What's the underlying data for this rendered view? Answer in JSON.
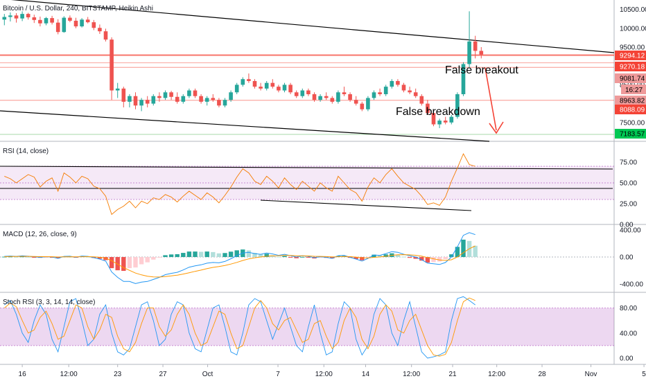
{
  "header": {
    "title": "Bitcoin / U.S. Dollar, 240, BITSTAMP, Heikin Ashi"
  },
  "colors": {
    "up": "#26a69a",
    "down": "#ef5350",
    "trendline": "#000000",
    "level": "#f44336",
    "support": "#4caf50",
    "rsi_line": "#f57c00",
    "rsi_band": "#9c27b0",
    "macd_line": "#2196f3",
    "signal_line": "#ff9800",
    "stoch_k": "#2196f3",
    "stoch_d": "#ff9800",
    "arrow": "#f44336"
  },
  "chart_data": [
    {
      "type": "candlestick",
      "panel": "price",
      "x_range": [
        0,
        100
      ],
      "ylim": [
        7000,
        10750
      ],
      "y_ticks": [
        7500,
        8000,
        8500,
        9000,
        9500,
        10000,
        10500
      ],
      "y_tick_labels": [
        "7500.00",
        "8000.00",
        "8500.00",
        "9000.00",
        "9500.00",
        "10000.00",
        "10500.00"
      ],
      "ohlc": [
        [
          10230,
          10380,
          10080,
          10300
        ],
        [
          10300,
          10420,
          10180,
          10340
        ],
        [
          10340,
          10400,
          10150,
          10260
        ],
        [
          10260,
          10450,
          10190,
          10380
        ],
        [
          10380,
          10410,
          10230,
          10290
        ],
        [
          10290,
          10360,
          10140,
          10220
        ],
        [
          10220,
          10310,
          10050,
          10130
        ],
        [
          10130,
          10300,
          10080,
          10270
        ],
        [
          10270,
          10330,
          10100,
          10150
        ],
        [
          10150,
          10240,
          9840,
          9900
        ],
        [
          9900,
          10320,
          9880,
          10280
        ],
        [
          10280,
          10340,
          10160,
          10200
        ],
        [
          10200,
          10280,
          10000,
          10050
        ],
        [
          10050,
          10270,
          10020,
          10230
        ],
        [
          10230,
          10300,
          10130,
          10160
        ],
        [
          10160,
          10220,
          9950,
          10010
        ],
        [
          10010,
          10100,
          9850,
          9920
        ],
        [
          9920,
          9990,
          9650,
          9700
        ],
        [
          9700,
          9760,
          8100,
          8350
        ],
        [
          8350,
          8550,
          8150,
          8400
        ],
        [
          8400,
          8450,
          7900,
          8050
        ],
        [
          8050,
          8250,
          7900,
          8200
        ],
        [
          8200,
          8300,
          7850,
          7950
        ],
        [
          7950,
          8150,
          7800,
          8100
        ],
        [
          8100,
          8200,
          7900,
          8000
        ],
        [
          8000,
          8250,
          7950,
          8200
        ],
        [
          8200,
          8300,
          8050,
          8150
        ],
        [
          8150,
          8350,
          8100,
          8300
        ],
        [
          8300,
          8340,
          8100,
          8180
        ],
        [
          8180,
          8300,
          8000,
          8050
        ],
        [
          8050,
          8250,
          8000,
          8200
        ],
        [
          8200,
          8400,
          8150,
          8350
        ],
        [
          8350,
          8400,
          8150,
          8200
        ],
        [
          8200,
          8250,
          8000,
          8050
        ],
        [
          8050,
          8200,
          7950,
          8150
        ],
        [
          8150,
          8250,
          8050,
          8100
        ],
        [
          8100,
          8150,
          7900,
          7950
        ],
        [
          7950,
          8150,
          7900,
          8100
        ],
        [
          8100,
          8350,
          8050,
          8300
        ],
        [
          8300,
          8550,
          8250,
          8500
        ],
        [
          8500,
          8700,
          8450,
          8650
        ],
        [
          8650,
          8800,
          8550,
          8600
        ],
        [
          8600,
          8650,
          8400,
          8450
        ],
        [
          8450,
          8550,
          8350,
          8400
        ],
        [
          8400,
          8600,
          8350,
          8550
        ],
        [
          8550,
          8650,
          8400,
          8450
        ],
        [
          8450,
          8500,
          8300,
          8350
        ],
        [
          8350,
          8550,
          8300,
          8500
        ],
        [
          8500,
          8550,
          8250,
          8300
        ],
        [
          8300,
          8350,
          8150,
          8200
        ],
        [
          8200,
          8400,
          8150,
          8350
        ],
        [
          8350,
          8400,
          8200,
          8250
        ],
        [
          8250,
          8300,
          8050,
          8100
        ],
        [
          8100,
          8250,
          8050,
          8200
        ],
        [
          8200,
          8300,
          8100,
          8150
        ],
        [
          8150,
          8200,
          8000,
          8050
        ],
        [
          8050,
          8350,
          8000,
          8300
        ],
        [
          8300,
          8450,
          8200,
          8250
        ],
        [
          8250,
          8300,
          8050,
          8100
        ],
        [
          8100,
          8200,
          7950,
          8000
        ],
        [
          8000,
          8050,
          7800,
          7850
        ],
        [
          7850,
          8200,
          7800,
          8150
        ],
        [
          8150,
          8350,
          8100,
          8300
        ],
        [
          8300,
          8400,
          8200,
          8250
        ],
        [
          8250,
          8500,
          8200,
          8450
        ],
        [
          8450,
          8650,
          8400,
          8600
        ],
        [
          8600,
          8650,
          8450,
          8500
        ],
        [
          8500,
          8550,
          8300,
          8350
        ],
        [
          8350,
          8450,
          8250,
          8300
        ],
        [
          8300,
          8400,
          8150,
          8200
        ],
        [
          8200,
          8250,
          7950,
          8000
        ],
        [
          8000,
          8100,
          7700,
          7750
        ],
        [
          7750,
          7800,
          7400,
          7450
        ],
        [
          7450,
          7600,
          7350,
          7550
        ],
        [
          7550,
          7650,
          7450,
          7500
        ],
        [
          7500,
          7700,
          7450,
          7650
        ],
        [
          7650,
          8300,
          7600,
          8250
        ],
        [
          8250,
          9100,
          8200,
          9050
        ],
        [
          9050,
          10450,
          8950,
          9650
        ],
        [
          9650,
          9800,
          9200,
          9400
        ],
        [
          9400,
          9500,
          9200,
          9300
        ]
      ],
      "horizontal_levels": [
        9294.12,
        9270.18,
        9081.74,
        8963.82,
        8088.09,
        7183.57
      ],
      "level_labels": [
        "9294.12",
        "9270.18",
        "9081.74",
        "8963.82",
        "8088.09",
        "7183.57"
      ],
      "countdown_label": "16:27",
      "annotations": [
        "False breakout",
        "False breakdown"
      ]
    },
    {
      "type": "line",
      "panel": "rsi",
      "title": "RSI (14, close)",
      "ylim": [
        0,
        100
      ],
      "y_ticks": [
        0,
        25,
        50,
        75
      ],
      "y_tick_labels": [
        "0.00",
        "25.00",
        "50.00",
        "75.00"
      ],
      "band": [
        30,
        70
      ],
      "values": [
        58,
        55,
        50,
        55,
        60,
        57,
        45,
        52,
        56,
        40,
        62,
        57,
        50,
        58,
        55,
        46,
        43,
        34,
        12,
        18,
        22,
        28,
        20,
        28,
        25,
        32,
        30,
        36,
        33,
        27,
        34,
        40,
        35,
        30,
        38,
        33,
        26,
        35,
        45,
        57,
        67,
        62,
        52,
        48,
        58,
        52,
        44,
        56,
        48,
        42,
        52,
        46,
        40,
        50,
        44,
        40,
        58,
        50,
        42,
        38,
        28,
        45,
        56,
        50,
        60,
        67,
        58,
        50,
        46,
        42,
        34,
        24,
        26,
        23,
        33,
        52,
        68,
        85,
        72,
        70
      ]
    },
    {
      "type": "line",
      "panel": "macd",
      "title": "MACD (12, 26, close, 9)",
      "ylim": [
        -520,
        480
      ],
      "y_ticks": [
        -400,
        0,
        400
      ],
      "y_tick_labels": [
        "-400.00",
        "0.00",
        "400.00"
      ],
      "macd": [
        10,
        15,
        10,
        18,
        12,
        5,
        -5,
        5,
        0,
        -20,
        10,
        12,
        -5,
        15,
        10,
        -10,
        -30,
        -60,
        -220,
        -300,
        -360,
        -360,
        -390,
        -370,
        -360,
        -330,
        -300,
        -260,
        -240,
        -225,
        -190,
        -150,
        -130,
        -115,
        -90,
        -80,
        -85,
        -65,
        -25,
        20,
        60,
        70,
        50,
        40,
        60,
        45,
        25,
        40,
        20,
        0,
        20,
        10,
        -10,
        5,
        -5,
        -20,
        20,
        25,
        -5,
        -30,
        -60,
        -20,
        30,
        25,
        50,
        80,
        70,
        40,
        20,
        0,
        -40,
        -90,
        -100,
        -110,
        -80,
        0,
        150,
        320,
        360,
        330
      ],
      "signal": [
        5,
        8,
        8,
        10,
        10,
        9,
        6,
        6,
        5,
        0,
        2,
        4,
        2,
        5,
        6,
        3,
        -4,
        -15,
        -56,
        -105,
        -156,
        -197,
        -236,
        -263,
        -282,
        -292,
        -294,
        -287,
        -278,
        -267,
        -251,
        -231,
        -211,
        -192,
        -171,
        -153,
        -139,
        -124,
        -104,
        -79,
        -51,
        -27,
        -11,
        0,
        12,
        19,
        20,
        24,
        23,
        18,
        18,
        16,
        11,
        10,
        7,
        1,
        5,
        9,
        6,
        -1,
        -13,
        -14,
        -5,
        1,
        11,
        25,
        34,
        35,
        32,
        26,
        13,
        -8,
        -26,
        -43,
        -50,
        -40,
        0,
        64,
        123,
        164
      ],
      "histogram": [
        5,
        7,
        2,
        8,
        2,
        -4,
        -11,
        -1,
        -5,
        -20,
        8,
        8,
        -7,
        10,
        4,
        -13,
        -26,
        -45,
        -164,
        -195,
        -204,
        -163,
        -154,
        -107,
        -78,
        -38,
        -6,
        27,
        38,
        42,
        61,
        81,
        81,
        77,
        81,
        73,
        54,
        59,
        79,
        99,
        111,
        97,
        61,
        40,
        48,
        26,
        5,
        16,
        -3,
        -18,
        2,
        -6,
        -21,
        -5,
        -12,
        -21,
        15,
        16,
        -11,
        -29,
        -47,
        -6,
        35,
        24,
        39,
        55,
        36,
        5,
        -12,
        -26,
        -53,
        -82,
        -74,
        -67,
        -30,
        40,
        150,
        256,
        237,
        166
      ]
    },
    {
      "type": "line",
      "panel": "stoch_rsi",
      "title": "Stoch RSI (3, 3, 14, 14, close)",
      "ylim": [
        -10,
        105
      ],
      "y_ticks": [
        0,
        40,
        80
      ],
      "y_tick_labels": [
        "0.00",
        "40.00",
        "80.00"
      ],
      "band": [
        20,
        80
      ],
      "k": [
        85,
        92,
        70,
        40,
        25,
        60,
        85,
        70,
        30,
        10,
        50,
        90,
        95,
        60,
        20,
        30,
        70,
        85,
        40,
        10,
        5,
        15,
        50,
        85,
        90,
        60,
        20,
        30,
        70,
        90,
        85,
        40,
        15,
        10,
        45,
        80,
        85,
        50,
        10,
        5,
        40,
        85,
        95,
        90,
        60,
        30,
        55,
        80,
        50,
        20,
        10,
        50,
        85,
        40,
        5,
        10,
        55,
        90,
        80,
        30,
        5,
        20,
        70,
        95,
        85,
        40,
        20,
        60,
        90,
        50,
        10,
        0,
        2,
        5,
        10,
        60,
        95,
        98,
        92,
        85
      ],
      "d": [
        80,
        88,
        82,
        60,
        40,
        45,
        65,
        75,
        55,
        30,
        35,
        60,
        85,
        80,
        50,
        30,
        45,
        70,
        65,
        35,
        15,
        10,
        25,
        55,
        80,
        80,
        50,
        35,
        45,
        70,
        85,
        70,
        40,
        20,
        25,
        50,
        75,
        70,
        40,
        15,
        20,
        50,
        80,
        92,
        80,
        55,
        45,
        60,
        65,
        45,
        25,
        30,
        55,
        60,
        35,
        15,
        25,
        60,
        80,
        65,
        30,
        15,
        35,
        70,
        85,
        75,
        45,
        40,
        60,
        70,
        45,
        20,
        5,
        3,
        6,
        25,
        60,
        90,
        96,
        92
      ]
    }
  ],
  "x_axis": {
    "labels": [
      "16",
      "12:00",
      "23",
      "27",
      "Oct",
      "7",
      "12:00",
      "14",
      "12:00",
      "21",
      "12:00",
      "28",
      "Nov",
      "5"
    ],
    "label_x": [
      3.0,
      10.8,
      19.0,
      26.6,
      34.1,
      45.9,
      53.6,
      60.6,
      68.3,
      75.2,
      82.6,
      90.2,
      98.4,
      107.3
    ]
  }
}
